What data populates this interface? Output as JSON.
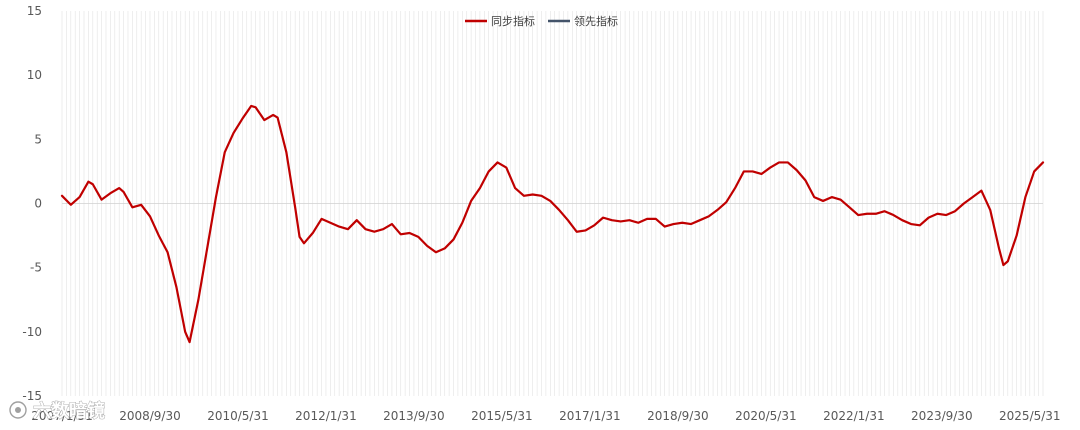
{
  "chart_data": {
    "type": "line",
    "title": "",
    "xlabel": "",
    "ylabel": "",
    "ylim": [
      -15,
      15
    ],
    "yticks": [
      15,
      10,
      5,
      0,
      -5,
      -10,
      -15
    ],
    "grid": true,
    "legend_position": "top-center",
    "x_tick_labels": [
      "2007/1/31",
      "2008/9/30",
      "2010/5/31",
      "2012/1/31",
      "2013/9/30",
      "2015/5/31",
      "2017/1/31",
      "2018/9/30",
      "2020/5/31",
      "2022/1/31",
      "2023/9/30",
      "2025/5/31"
    ],
    "start": "2007/1/31",
    "end": "2025/8/31",
    "series": [
      {
        "name": "同步指标",
        "color": "#c00000",
        "points": [
          [
            "2007/1",
            0.6
          ],
          [
            "2007/3",
            -0.1
          ],
          [
            "2007/5",
            0.5
          ],
          [
            "2007/7",
            1.7
          ],
          [
            "2007/8",
            1.5
          ],
          [
            "2007/10",
            0.3
          ],
          [
            "2007/12",
            0.8
          ],
          [
            "2008/2",
            1.2
          ],
          [
            "2008/3",
            0.9
          ],
          [
            "2008/5",
            -0.3
          ],
          [
            "2008/7",
            -0.1
          ],
          [
            "2008/9",
            -1.0
          ],
          [
            "2008/11",
            -2.5
          ],
          [
            "2009/1",
            -3.8
          ],
          [
            "2009/3",
            -6.5
          ],
          [
            "2009/5",
            -10.0
          ],
          [
            "2009/6",
            -10.8
          ],
          [
            "2009/8",
            -7.5
          ],
          [
            "2009/10",
            -3.5
          ],
          [
            "2009/12",
            0.5
          ],
          [
            "2010/2",
            4.0
          ],
          [
            "2010/4",
            5.5
          ],
          [
            "2010/6",
            6.6
          ],
          [
            "2010/8",
            7.6
          ],
          [
            "2010/9",
            7.5
          ],
          [
            "2010/11",
            6.5
          ],
          [
            "2011/1",
            6.9
          ],
          [
            "2011/2",
            6.7
          ],
          [
            "2011/4",
            4.0
          ],
          [
            "2011/6",
            -0.3
          ],
          [
            "2011/7",
            -2.6
          ],
          [
            "2011/8",
            -3.1
          ],
          [
            "2011/10",
            -2.3
          ],
          [
            "2011/12",
            -1.2
          ],
          [
            "2012/2",
            -1.5
          ],
          [
            "2012/4",
            -1.8
          ],
          [
            "2012/6",
            -2.0
          ],
          [
            "2012/8",
            -1.3
          ],
          [
            "2012/10",
            -2.0
          ],
          [
            "2012/12",
            -2.2
          ],
          [
            "2013/2",
            -2.0
          ],
          [
            "2013/4",
            -1.6
          ],
          [
            "2013/6",
            -2.4
          ],
          [
            "2013/8",
            -2.3
          ],
          [
            "2013/10",
            -2.6
          ],
          [
            "2013/12",
            -3.3
          ],
          [
            "2014/2",
            -3.8
          ],
          [
            "2014/4",
            -3.5
          ],
          [
            "2014/6",
            -2.8
          ],
          [
            "2014/8",
            -1.5
          ],
          [
            "2014/10",
            0.2
          ],
          [
            "2014/12",
            1.2
          ],
          [
            "2015/2",
            2.5
          ],
          [
            "2015/4",
            3.2
          ],
          [
            "2015/6",
            2.8
          ],
          [
            "2015/8",
            1.2
          ],
          [
            "2015/10",
            0.6
          ],
          [
            "2015/12",
            0.7
          ],
          [
            "2016/2",
            0.6
          ],
          [
            "2016/4",
            0.2
          ],
          [
            "2016/6",
            -0.5
          ],
          [
            "2016/8",
            -1.3
          ],
          [
            "2016/10",
            -2.2
          ],
          [
            "2016/12",
            -2.1
          ],
          [
            "2017/2",
            -1.7
          ],
          [
            "2017/4",
            -1.1
          ],
          [
            "2017/6",
            -1.3
          ],
          [
            "2017/8",
            -1.4
          ],
          [
            "2017/10",
            -1.3
          ],
          [
            "2017/12",
            -1.5
          ],
          [
            "2018/2",
            -1.2
          ],
          [
            "2018/4",
            -1.2
          ],
          [
            "2018/6",
            -1.8
          ],
          [
            "2018/8",
            -1.6
          ],
          [
            "2018/10",
            -1.5
          ],
          [
            "2018/12",
            -1.6
          ],
          [
            "2019/2",
            -1.3
          ],
          [
            "2019/4",
            -1.0
          ],
          [
            "2019/6",
            -0.5
          ],
          [
            "2019/8",
            0.1
          ],
          [
            "2019/10",
            1.2
          ],
          [
            "2019/12",
            2.5
          ],
          [
            "2020/2",
            2.5
          ],
          [
            "2020/4",
            2.3
          ],
          [
            "2020/6",
            2.8
          ],
          [
            "2020/8",
            3.2
          ],
          [
            "2020/10",
            3.2
          ],
          [
            "2020/12",
            2.6
          ],
          [
            "2021/2",
            1.8
          ],
          [
            "2021/4",
            0.5
          ],
          [
            "2021/6",
            0.2
          ],
          [
            "2021/8",
            0.5
          ],
          [
            "2021/10",
            0.3
          ],
          [
            "2021/12",
            -0.3
          ],
          [
            "2022/2",
            -0.9
          ],
          [
            "2022/4",
            -0.8
          ],
          [
            "2022/6",
            -0.8
          ],
          [
            "2022/8",
            -0.6
          ],
          [
            "2022/10",
            -0.9
          ],
          [
            "2022/12",
            -1.3
          ],
          [
            "2023/2",
            -1.6
          ],
          [
            "2023/4",
            -1.7
          ],
          [
            "2023/6",
            -1.1
          ],
          [
            "2023/8",
            -0.8
          ],
          [
            "2023/10",
            -0.9
          ],
          [
            "2023/12",
            -0.6
          ],
          [
            "2024/2",
            0.0
          ],
          [
            "2024/4",
            0.5
          ],
          [
            "2024/6",
            1.0
          ],
          [
            "2024/8",
            -0.5
          ],
          [
            "2024/10",
            -3.5
          ],
          [
            "2024/11",
            -4.8
          ],
          [
            "2024/12",
            -4.5
          ],
          [
            "2025/2",
            -2.5
          ],
          [
            "2025/4",
            0.5
          ],
          [
            "2025/6",
            2.5
          ],
          [
            "2025/8",
            3.2
          ]
        ]
      },
      {
        "name": "领先指标",
        "color": "#44546a",
        "points": []
      }
    ],
    "watermark": "六数暗镜"
  }
}
